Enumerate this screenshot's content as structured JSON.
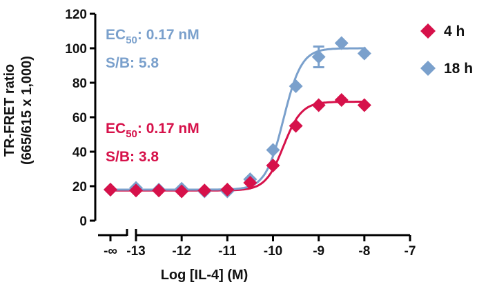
{
  "chart_data": {
    "type": "scatter",
    "xlabel": "Log [IL-4] (M)",
    "ylabel_line1": "TR-FRET ratio",
    "ylabel_line2": "(665/615 x 1,000)",
    "xlim": [
      -13.5,
      -7
    ],
    "ylim": [
      0,
      120
    ],
    "x_ticks": [
      -13,
      -12,
      -11,
      -10,
      -9,
      -8,
      -7
    ],
    "x_tick_labels": [
      "-13",
      "-12",
      "-11",
      "-10",
      "-9",
      "-8",
      "-7"
    ],
    "x_break_label": "-∞",
    "y_ticks": [
      0,
      20,
      40,
      60,
      80,
      100,
      120
    ],
    "y_tick_labels": [
      "0",
      "20",
      "40",
      "60",
      "80",
      "100",
      "120"
    ],
    "series": [
      {
        "name": "4 h",
        "color": "#d6114a",
        "marker": "diamond",
        "x": [
          "-inf",
          -13,
          -12.5,
          -12,
          -11.5,
          -11,
          -10.5,
          -10,
          -9.5,
          -9,
          -8.5,
          -8
        ],
        "y": [
          18,
          17.5,
          17.5,
          17,
          17.5,
          18,
          22,
          32,
          55,
          67,
          70,
          67
        ],
        "fit": {
          "bottom": 17.5,
          "top": 69,
          "logEC50": -9.77,
          "hill": 2.2
        },
        "annotation": {
          "ec_label": "EC",
          "ec_sub": "50",
          "ec_value": ": 0.17 nM",
          "sb": "S/B: 3.8"
        }
      },
      {
        "name": "18 h",
        "color": "#7aa0cc",
        "marker": "diamond",
        "x": [
          "-inf",
          -13,
          -12.5,
          -12,
          -11.5,
          -11,
          -10.5,
          -10,
          -9.5,
          -9,
          -8.5,
          -8
        ],
        "y": [
          18,
          19,
          18,
          18.5,
          17,
          17,
          24,
          41,
          78,
          95,
          103,
          97
        ],
        "error": [
          0,
          0,
          0,
          0,
          0,
          0,
          0,
          0,
          0,
          6,
          0,
          0
        ],
        "fit": {
          "bottom": 18,
          "top": 100,
          "logEC50": -9.77,
          "hill": 2.2
        },
        "annotation": {
          "ec_label": "EC",
          "ec_sub": "50",
          "ec_value": ": 0.17 nM",
          "sb": "S/B: 5.8"
        }
      }
    ],
    "legend": {
      "position": "right",
      "entries": [
        "4 h",
        "18 h"
      ]
    }
  }
}
